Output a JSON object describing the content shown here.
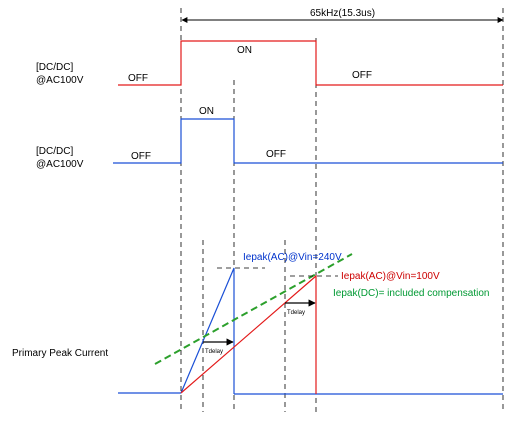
{
  "period_label": "65kHz(15.3us)",
  "colors": {
    "high_line": "#e31a1a",
    "low_line": "#1a4fd6",
    "green": "#2ca02c"
  },
  "row1": {
    "name_line1": "[DC/DC]",
    "name_line2": "@AC100V",
    "off_left": "OFF",
    "on": "ON",
    "off_right": "OFF"
  },
  "row2": {
    "name_line1": "[DC/DC]",
    "name_line2": "@AC100V",
    "off_left": "OFF",
    "on": "ON",
    "off_right": "OFF"
  },
  "current": {
    "axis_label": "Primary Peak Current",
    "ipeak_240": "Iepak(AC)@Vin=240V",
    "ipeak_100": "Iepak(AC)@Vin=100V",
    "ipeak_dc": "Iepak(DC)= included compensation",
    "tdelay_1": "Tdelay",
    "tdelay_2": "Tdelay"
  }
}
